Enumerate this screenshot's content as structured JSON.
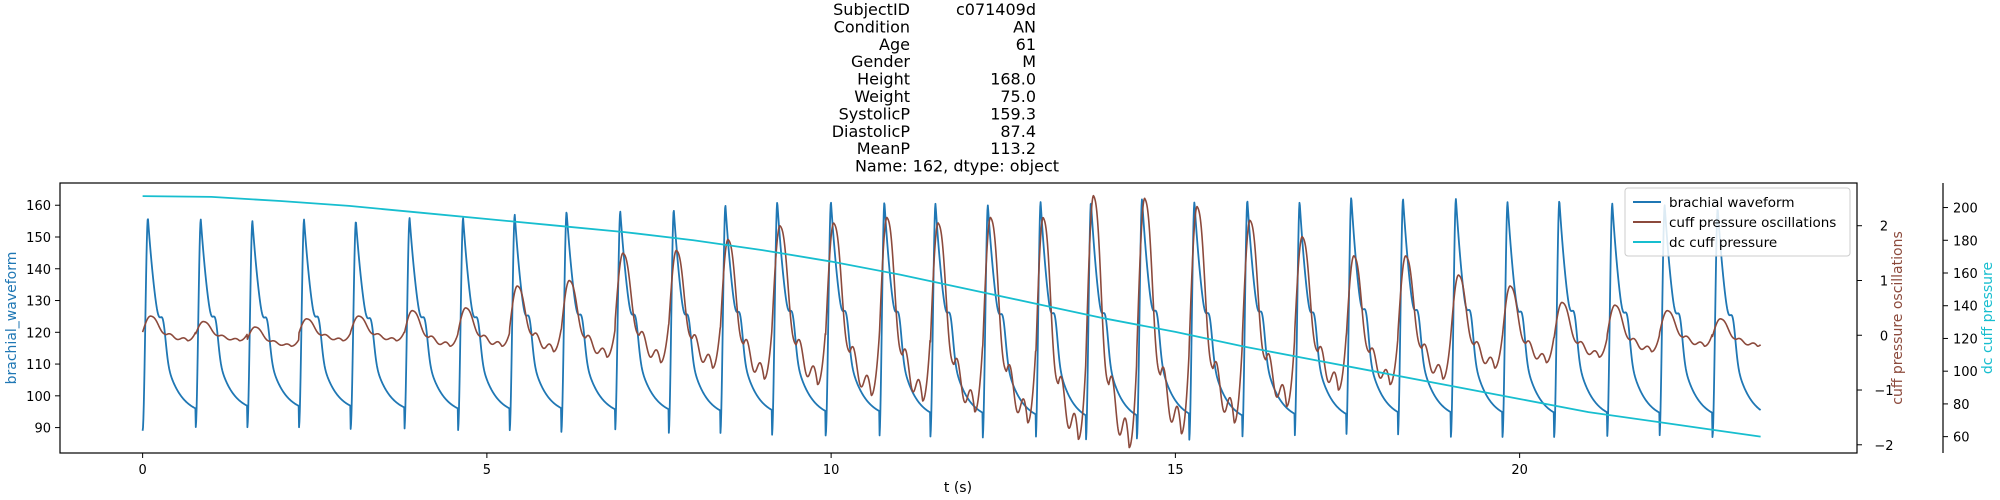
{
  "colors": {
    "brachial": "#1f77b4",
    "cuff_osc": "#8c4a3c",
    "dc_cuff": "#17becf",
    "axis": "#000000",
    "legend_border": "#cccccc"
  },
  "title_lines": [
    [
      "SubjectID",
      "c071409d"
    ],
    [
      "Condition",
      "AN"
    ],
    [
      "Age",
      "61"
    ],
    [
      "Gender",
      "M"
    ],
    [
      "Height",
      "168.0"
    ],
    [
      "Weight",
      "75.0"
    ],
    [
      "SystolicP",
      "159.3"
    ],
    [
      "DiastolicP",
      "87.4"
    ],
    [
      "MeanP",
      "113.2"
    ]
  ],
  "title_footer": "Name: 162, dtype: object",
  "chart_data": {
    "type": "line",
    "xlabel": "t (s)",
    "xlim": [
      -1.2,
      24.9
    ],
    "xticks": [
      0,
      5,
      10,
      15,
      20
    ],
    "axes": {
      "left": {
        "label": "brachial_waveform",
        "ylim": [
          82,
          167
        ],
        "ticks": [
          90,
          100,
          110,
          120,
          130,
          140,
          150,
          160
        ]
      },
      "right1": {
        "label": "cuff pressure oscillations",
        "ylim": [
          -2.15,
          2.78
        ],
        "ticks": [
          -2,
          -1,
          0,
          1,
          2
        ]
      },
      "right2": {
        "label": "dc cuff pressure",
        "ylim": [
          50,
          215
        ],
        "ticks": [
          60,
          80,
          100,
          120,
          140,
          160,
          180,
          200
        ]
      }
    },
    "legend": {
      "placement": "top-right",
      "entries": [
        "brachial waveform",
        "cuff pressure oscillations",
        "dc cuff pressure"
      ]
    },
    "series": [
      {
        "name": "brachial waveform",
        "axis": "left",
        "x_range": [
          0,
          23.5
        ],
        "beat_times": [
          0.0,
          0.77,
          1.52,
          2.27,
          3.02,
          3.8,
          4.58,
          5.33,
          6.08,
          6.86,
          7.64,
          8.39,
          9.14,
          9.92,
          10.7,
          11.44,
          12.2,
          12.97,
          13.7,
          14.44,
          15.2,
          15.97,
          16.73,
          17.48,
          18.23,
          19.0,
          19.75,
          20.5,
          21.27,
          22.03,
          22.8
        ],
        "peaks": [
          156,
          155.5,
          155,
          155.5,
          155,
          156,
          156,
          157,
          158,
          158,
          158.5,
          160,
          161,
          161,
          161,
          160.5,
          160,
          161,
          161,
          162,
          161,
          161.5,
          161,
          162.5,
          162,
          162,
          161,
          161.5,
          160.5,
          160,
          159
        ],
        "troughs": [
          89,
          90,
          90,
          90,
          89.5,
          89,
          89,
          89,
          88.5,
          88.5,
          88,
          88,
          87.5,
          87.5,
          87,
          87,
          86.5,
          86,
          86,
          86.5,
          86,
          86.5,
          86.5,
          87,
          87,
          87,
          87,
          87,
          87,
          87,
          87
        ],
        "start_value": 89,
        "end_value": 90
      },
      {
        "name": "cuff pressure oscillations",
        "axis": "right1",
        "x_range": [
          0,
          23.5
        ],
        "beat_times": [
          0.0,
          0.77,
          1.52,
          2.27,
          3.02,
          3.8,
          4.58,
          5.33,
          6.08,
          6.86,
          7.64,
          8.39,
          9.14,
          9.92,
          10.7,
          11.44,
          12.2,
          12.97,
          13.7,
          14.44,
          15.2,
          15.97,
          16.73,
          17.48,
          18.23,
          19.0,
          19.75,
          20.5,
          21.27,
          22.03,
          22.8
        ],
        "peaks": [
          0.35,
          0.25,
          0.15,
          0.3,
          0.35,
          0.45,
          0.5,
          0.9,
          1.0,
          1.5,
          1.55,
          1.75,
          2.0,
          2.05,
          2.15,
          2.05,
          2.15,
          2.15,
          2.55,
          2.5,
          2.35,
          2.1,
          1.8,
          1.45,
          1.45,
          1.1,
          0.9,
          0.6,
          0.55,
          0.45,
          0.3
        ],
        "troughs": [
          -0.1,
          -0.1,
          -0.2,
          -0.1,
          -0.1,
          -0.2,
          -0.2,
          -0.3,
          -0.4,
          -0.5,
          -0.6,
          -0.8,
          -0.9,
          -1.1,
          -1.2,
          -1.4,
          -1.6,
          -1.9,
          -2.05,
          -1.8,
          -1.6,
          -1.3,
          -1.0,
          -0.9,
          -0.8,
          -0.6,
          -0.5,
          -0.4,
          -0.3,
          -0.2,
          -0.2
        ],
        "start_value": -0.05,
        "end_value": -0.25
      },
      {
        "name": "dc cuff pressure",
        "axis": "right2",
        "x": [
          0,
          1,
          2,
          3,
          4,
          5,
          6,
          7,
          8,
          9,
          10,
          11,
          12,
          13,
          14,
          15,
          16,
          17,
          18,
          19,
          20,
          21,
          22,
          23,
          23.5
        ],
        "y": [
          207,
          206.5,
          204,
          201,
          197,
          193,
          189,
          185,
          180,
          174,
          167,
          159,
          150,
          141,
          132,
          124,
          115,
          107,
          99,
          91,
          83,
          75,
          69,
          63,
          60
        ]
      }
    ]
  }
}
